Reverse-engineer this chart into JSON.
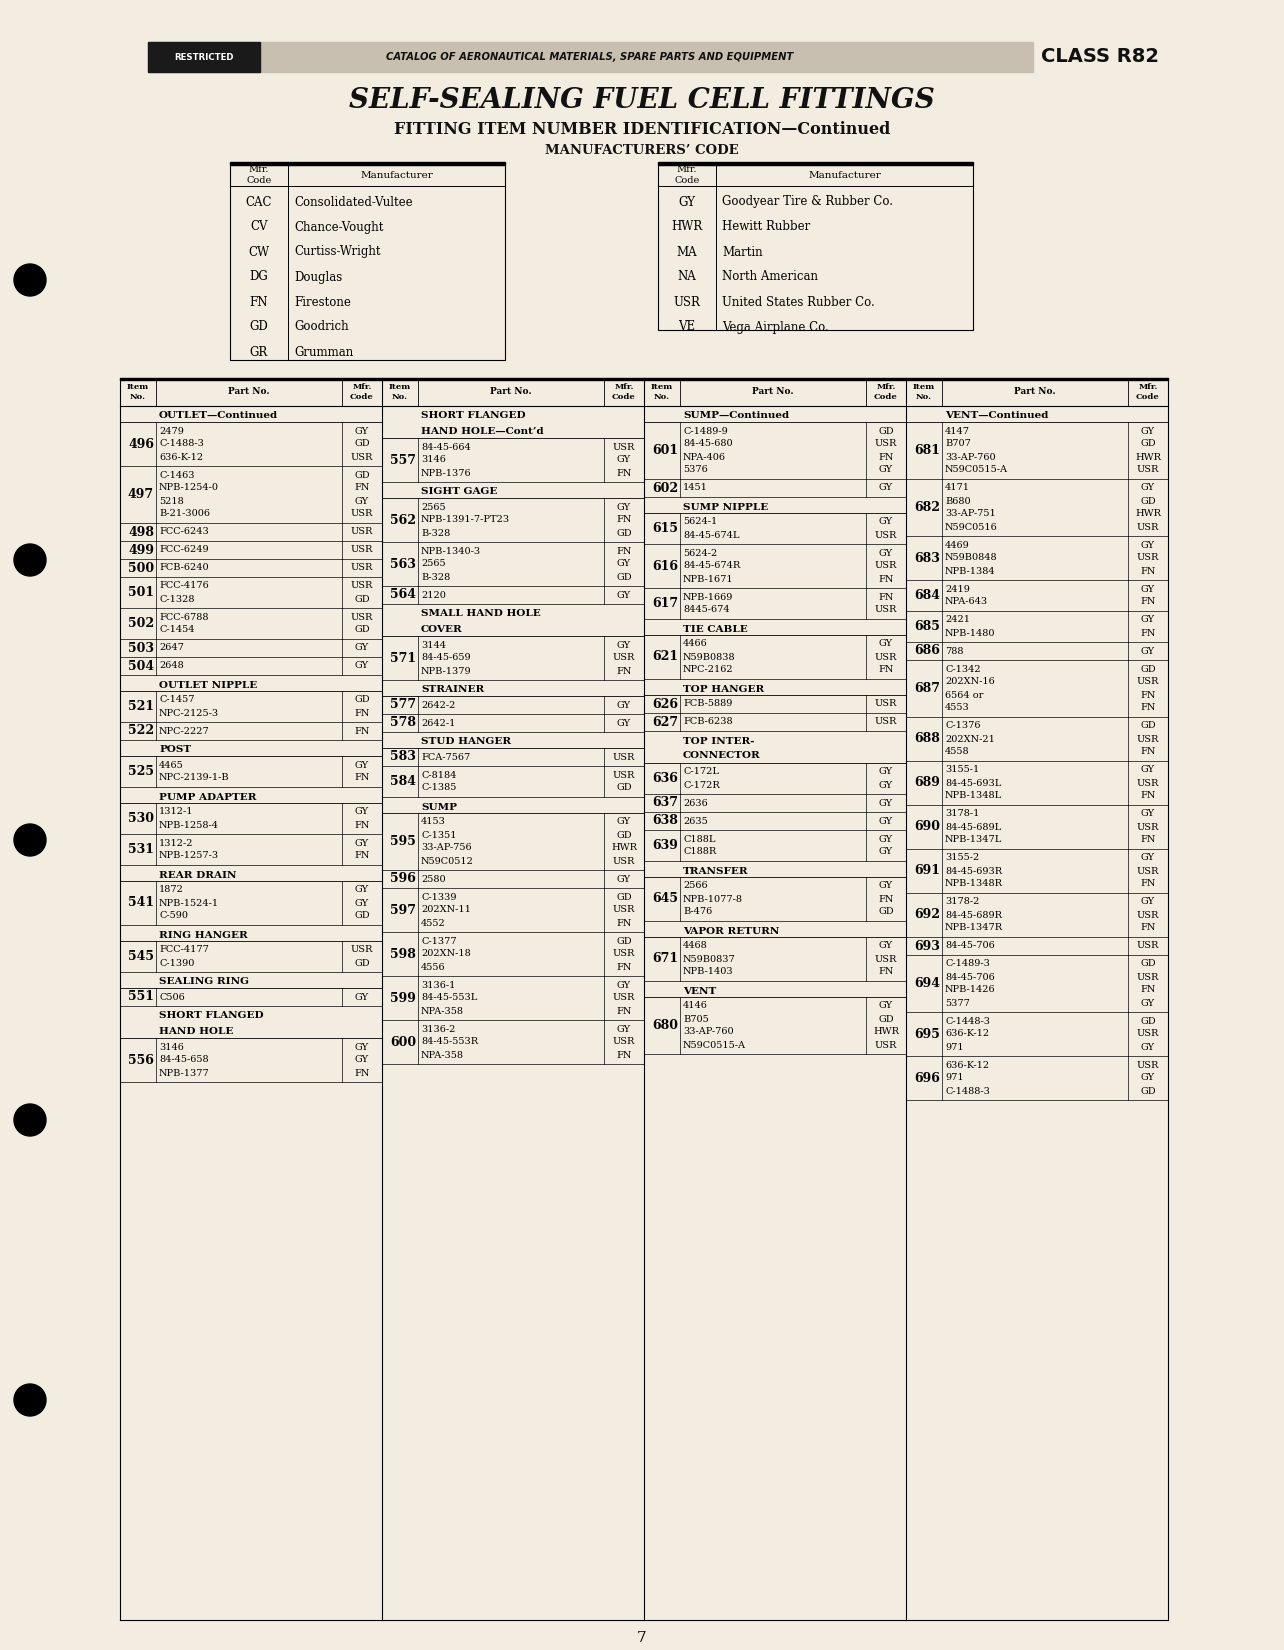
{
  "bg_color": "#f2ede0",
  "page_number": "7",
  "header_text": "CATALOG OF AERONAUTICAL MATERIALS, SPARE PARTS AND EQUIPMENT",
  "class_text": "CLASS R82",
  "title1": "SELF-SEALING FUEL CELL FITTINGS",
  "title2": "FITTING ITEM NUMBER IDENTIFICATION—Continued",
  "title3": "MANUFACTURERS’ CODE",
  "mfr_left": [
    [
      "CAC",
      "Consolidated-Vultee"
    ],
    [
      "CV",
      "Chance-Vought"
    ],
    [
      "CW",
      "Curtiss-Wright"
    ],
    [
      "DG",
      "Douglas"
    ],
    [
      "FN",
      "Firestone"
    ],
    [
      "GD",
      "Goodrich"
    ],
    [
      "GR",
      "Grumman"
    ]
  ],
  "mfr_right": [
    [
      "GY",
      "Goodyear Tire & Rubber Co."
    ],
    [
      "HWR",
      "Hewitt Rubber"
    ],
    [
      "MA",
      "Martin"
    ],
    [
      "NA",
      "North American"
    ],
    [
      "USR",
      "United States Rubber Co."
    ],
    [
      "VE",
      "Vega Airplane Co."
    ]
  ],
  "columns": [
    {
      "sections": [
        {
          "header": "OUTLET—Continued",
          "rows": [
            [
              "496",
              "2479\nC-1488-3\n636-K-12",
              "GY\nGD\nUSR"
            ],
            [
              "497",
              "C-1463\nNPB-1254-0\n5218\nB-21-3006",
              "GD\nFN\nGY\nUSR"
            ],
            [
              "498",
              "FCC-6243",
              "USR"
            ],
            [
              "499",
              "FCC-6249",
              "USR"
            ],
            [
              "500",
              "FCB-6240",
              "USR"
            ],
            [
              "501",
              "FCC-4176\nC-1328",
              "USR\nGD"
            ],
            [
              "502",
              "FCC-6788\nC-1454",
              "USR\nGD"
            ],
            [
              "503",
              "2647",
              "GY"
            ],
            [
              "504",
              "2648",
              "GY"
            ]
          ]
        },
        {
          "header": "OUTLET NIPPLE",
          "rows": [
            [
              "521",
              "C-1457\nNPC-2125-3",
              "GD\nFN"
            ],
            [
              "522",
              "NPC-2227",
              "FN"
            ]
          ]
        },
        {
          "header": "POST",
          "rows": [
            [
              "525",
              "4465\nNPC-2139-1-B",
              "GY\nFN"
            ]
          ]
        },
        {
          "header": "PUMP ADAPTER",
          "rows": [
            [
              "530",
              "1312-1\nNPB-1258-4",
              "GY\nFN"
            ],
            [
              "531",
              "1312-2\nNPB-1257-3",
              "GY\nFN"
            ]
          ]
        },
        {
          "header": "REAR DRAIN",
          "rows": [
            [
              "541",
              "1872\nNPB-1524-1\nC-590",
              "GY\nGY\nGD"
            ]
          ]
        },
        {
          "header": "RING HANGER",
          "rows": [
            [
              "545",
              "FCC-4177\nC-1390",
              "USR\nGD"
            ]
          ]
        },
        {
          "header": "SEALING RING",
          "rows": [
            [
              "551",
              "C506",
              "GY"
            ]
          ]
        },
        {
          "header": "SHORT FLANGED\nHAND HOLE",
          "rows": [
            [
              "556",
              "3146\n84-45-658\nNPB-1377",
              "GY\nGY\nFN"
            ]
          ]
        }
      ]
    },
    {
      "sections": [
        {
          "header": "SHORT FLANGED\nHAND HOLE—Cont’d",
          "rows": [
            [
              "557",
              "84-45-664\n3146\nNPB-1376",
              "USR\nGY\nFN"
            ]
          ]
        },
        {
          "header": "SIGHT GAGE",
          "rows": [
            [
              "562",
              "2565\nNPB-1391-7-PT23\nB-328",
              "GY\nFN\nGD"
            ],
            [
              "563",
              "NPB-1340-3\n2565\nB-328",
              "FN\nGY\nGD"
            ],
            [
              "564",
              "2120",
              "GY"
            ]
          ]
        },
        {
          "header": "SMALL HAND HOLE\nCOVER",
          "rows": [
            [
              "571",
              "3144\n84-45-659\nNPB-1379",
              "GY\nUSR\nFN"
            ]
          ]
        },
        {
          "header": "STRAINER",
          "rows": [
            [
              "577",
              "2642-2",
              "GY"
            ],
            [
              "578",
              "2642-1",
              "GY"
            ]
          ]
        },
        {
          "header": "STUD HANGER",
          "rows": [
            [
              "583",
              "FCA-7567",
              "USR"
            ],
            [
              "584",
              "C-8184\nC-1385",
              "USR\nGD"
            ]
          ]
        },
        {
          "header": "SUMP",
          "rows": [
            [
              "595",
              "4153\nC-1351\n33-AP-756\nN59C0512",
              "GY\nGD\nHWR\nUSR"
            ],
            [
              "596",
              "2580",
              "GY"
            ],
            [
              "597",
              "C-1339\n202XN-11\n4552",
              "GD\nUSR\nFN"
            ],
            [
              "598",
              "C-1377\n202XN-18\n4556",
              "GD\nUSR\nFN"
            ],
            [
              "599",
              "3136-1\n84-45-553L\nNPA-358",
              "GY\nUSR\nFN"
            ],
            [
              "600",
              "3136-2\n84-45-553R\nNPA-358",
              "GY\nUSR\nFN"
            ]
          ]
        }
      ]
    },
    {
      "sections": [
        {
          "header": "SUMP—Continued",
          "rows": [
            [
              "601",
              "C-1489-9\n84-45-680\nNPA-406\n5376",
              "GD\nUSR\nFN\nGY"
            ],
            [
              "602",
              "1451",
              "GY"
            ]
          ]
        },
        {
          "header": "SUMP NIPPLE",
          "rows": [
            [
              "615",
              "5624-1\n84-45-674L",
              "GY\nUSR"
            ],
            [
              "616",
              "5624-2\n84-45-674R\nNPB-1671",
              "GY\nUSR\nFN"
            ],
            [
              "617",
              "NPB-1669\n8445-674",
              "FN\nUSR"
            ]
          ]
        },
        {
          "header": "TIE CABLE",
          "rows": [
            [
              "621",
              "4466\nN59B0838\nNPC-2162",
              "GY\nUSR\nFN"
            ]
          ]
        },
        {
          "header": "TOP HANGER",
          "rows": [
            [
              "626",
              "FCB-5889",
              "USR"
            ],
            [
              "627",
              "FCB-6238",
              "USR"
            ]
          ]
        },
        {
          "header": "TOP INTER-\nCONNECTOR",
          "rows": [
            [
              "636",
              "C-172L\nC-172R",
              "GY\nGY"
            ],
            [
              "637",
              "2636",
              "GY"
            ],
            [
              "638",
              "2635",
              "GY"
            ],
            [
              "639",
              "C188L\nC188R",
              "GY\nGY"
            ]
          ]
        },
        {
          "header": "TRANSFER",
          "rows": [
            [
              "645",
              "2566\nNPB-1077-8\nB-476",
              "GY\nFN\nGD"
            ]
          ]
        },
        {
          "header": "VAPOR RETURN",
          "rows": [
            [
              "671",
              "4468\nN59B0837\nNPB-1403",
              "GY\nUSR\nFN"
            ]
          ]
        },
        {
          "header": "VENT",
          "rows": [
            [
              "680",
              "4146\nB705\n33-AP-760\nN59C0515-A",
              "GY\nGD\nHWR\nUSR"
            ]
          ]
        }
      ]
    },
    {
      "sections": [
        {
          "header": "VENT—Continued",
          "rows": [
            [
              "681",
              "4147\nB707\n33-AP-760\nN59C0515-A",
              "GY\nGD\nHWR\nUSR"
            ],
            [
              "682",
              "4171\nB680\n33-AP-751\nN59C0516",
              "GY\nGD\nHWR\nUSR"
            ],
            [
              "683",
              "4469\nN59B0848\nNPB-1384",
              "GY\nUSR\nFN"
            ],
            [
              "684",
              "2419\nNPA-643",
              "GY\nFN"
            ],
            [
              "685",
              "2421\nNPB-1480",
              "GY\nFN"
            ],
            [
              "686",
              "788",
              "GY"
            ],
            [
              "687",
              "C-1342\n202XN-16\n6564 or\n4553",
              "GD\nUSR\nFN\nFN"
            ],
            [
              "688",
              "C-1376\n202XN-21\n4558",
              "GD\nUSR\nFN"
            ],
            [
              "689",
              "3155-1\n84-45-693L\nNPB-1348L",
              "GY\nUSR\nFN"
            ],
            [
              "690",
              "3178-1\n84-45-689L\nNPB-1347L",
              "GY\nUSR\nFN"
            ],
            [
              "691",
              "3155-2\n84-45-693R\nNPB-1348R",
              "GY\nUSR\nFN"
            ],
            [
              "692",
              "3178-2\n84-45-689R\nNPB-1347R",
              "GY\nUSR\nFN"
            ],
            [
              "693",
              "84-45-706",
              "USR"
            ],
            [
              "694",
              "C-1489-3\n84-45-706\nNPB-1426\n5377",
              "GD\nUSR\nFN\nGY"
            ],
            [
              "695",
              "C-1448-3\n636-K-12\n971",
              "GD\nUSR\nGY"
            ],
            [
              "696",
              "636-K-12\n971\nC-1488-3",
              "USR\nGY\nGD"
            ]
          ]
        }
      ]
    }
  ]
}
